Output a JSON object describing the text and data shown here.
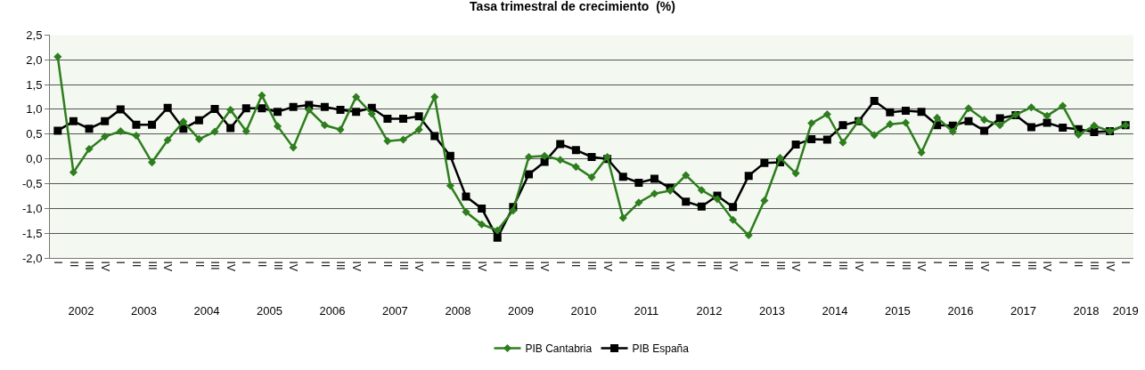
{
  "chart_data": {
    "type": "line",
    "title": "Tasa trimestral de crecimiento  (%)",
    "categories": [
      "I",
      "II",
      "III",
      "IV",
      "I",
      "II",
      "III",
      "IV",
      "I",
      "II",
      "III",
      "IV",
      "I",
      "II",
      "III",
      "IV",
      "I",
      "II",
      "III",
      "IV",
      "I",
      "II",
      "III",
      "IV",
      "I",
      "II",
      "III",
      "IV",
      "I",
      "II",
      "III",
      "IV",
      "I",
      "II",
      "III",
      "IV",
      "I",
      "II",
      "III",
      "IV",
      "I",
      "II",
      "III",
      "IV",
      "I",
      "II",
      "III",
      "IV",
      "I",
      "II",
      "III",
      "IV",
      "I",
      "II",
      "III",
      "IV",
      "I",
      "II",
      "III",
      "IV",
      "I",
      "II",
      "III",
      "IV",
      "I",
      "II",
      "III",
      "IV",
      "I"
    ],
    "series": [
      {
        "name": "PIB Cantabria",
        "color": "#2e7d1e",
        "marker": "diamond",
        "values": [
          2.06,
          -0.27,
          0.2,
          0.45,
          0.56,
          0.47,
          -0.07,
          0.38,
          0.75,
          0.4,
          0.55,
          0.99,
          0.56,
          1.28,
          0.66,
          0.23,
          0.99,
          0.68,
          0.59,
          1.25,
          0.91,
          0.36,
          0.39,
          0.59,
          1.25,
          -0.54,
          -1.07,
          -1.32,
          -1.44,
          -1.04,
          0.04,
          0.06,
          -0.02,
          -0.16,
          -0.37,
          0.04,
          -1.19,
          -0.88,
          -0.7,
          -0.64,
          -0.33,
          -0.63,
          -0.81,
          -1.23,
          -1.54,
          -0.84,
          0.02,
          -0.29,
          0.72,
          0.9,
          0.33,
          0.77,
          0.48,
          0.7,
          0.73,
          0.13,
          0.83,
          0.55,
          1.02,
          0.79,
          0.68,
          0.89,
          1.04,
          0.87,
          1.07,
          0.49,
          0.67,
          0.56,
          0.68
        ]
      },
      {
        "name": "PIB España",
        "color": "#000000",
        "marker": "square",
        "values": [
          0.57,
          0.76,
          0.61,
          0.76,
          1.0,
          0.69,
          0.69,
          1.03,
          0.61,
          0.78,
          1.01,
          0.62,
          1.02,
          1.02,
          0.95,
          1.05,
          1.09,
          1.05,
          0.99,
          0.95,
          1.03,
          0.81,
          0.81,
          0.86,
          0.46,
          0.06,
          -0.76,
          -1.0,
          -1.59,
          -0.97,
          -0.31,
          -0.06,
          0.3,
          0.18,
          0.04,
          0.0,
          -0.36,
          -0.48,
          -0.4,
          -0.59,
          -0.86,
          -0.96,
          -0.74,
          -0.97,
          -0.34,
          -0.08,
          -0.07,
          0.29,
          0.4,
          0.39,
          0.68,
          0.76,
          1.17,
          0.94,
          0.97,
          0.95,
          0.68,
          0.67,
          0.76,
          0.57,
          0.82,
          0.88,
          0.64,
          0.73,
          0.63,
          0.6,
          0.54,
          0.56,
          0.68
        ]
      }
    ],
    "ylim": [
      -2,
      2.5
    ],
    "yticks": [
      {
        "value": -2,
        "label": "-2,0"
      },
      {
        "value": -1.5,
        "label": "-1,5"
      },
      {
        "value": -1,
        "label": "-1,0"
      },
      {
        "value": -0.5,
        "label": "-0,5"
      },
      {
        "value": 0,
        "label": "0,0"
      },
      {
        "value": 0.5,
        "label": "0,5"
      },
      {
        "value": 1,
        "label": "1,0"
      },
      {
        "value": 1.5,
        "label": "1,5"
      },
      {
        "value": 2,
        "label": "2,0"
      },
      {
        "value": 2.5,
        "label": "2,5"
      }
    ],
    "x2lim": [
      "2001-11-16",
      "2019-02-15"
    ],
    "x2ticks": [
      {
        "value": "2002-05-16",
        "label": "2002"
      },
      {
        "value": "2003-05-16",
        "label": "2003"
      },
      {
        "value": "2004-05-16",
        "label": "2004"
      },
      {
        "value": "2005-05-16",
        "label": "2005"
      },
      {
        "value": "2006-05-16",
        "label": "2006"
      },
      {
        "value": "2007-05-16",
        "label": "2007"
      },
      {
        "value": "2008-05-16",
        "label": "2008"
      },
      {
        "value": "2009-05-16",
        "label": "2009"
      },
      {
        "value": "2010-05-16",
        "label": "2010"
      },
      {
        "value": "2011-05-16",
        "label": "2011"
      },
      {
        "value": "2012-05-16",
        "label": "2012"
      },
      {
        "value": "2013-05-16",
        "label": "2013"
      },
      {
        "value": "2014-05-16",
        "label": "2014"
      },
      {
        "value": "2015-05-16",
        "label": "2015"
      },
      {
        "value": "2016-05-16",
        "label": "2016"
      },
      {
        "value": "2017-05-16",
        "label": "2017"
      },
      {
        "value": "2018-05-16",
        "label": "2018"
      },
      {
        "value": "2019-01-01",
        "label": "2019"
      }
    ],
    "grid": "y",
    "legend": "bottom",
    "line_style": "solid"
  }
}
